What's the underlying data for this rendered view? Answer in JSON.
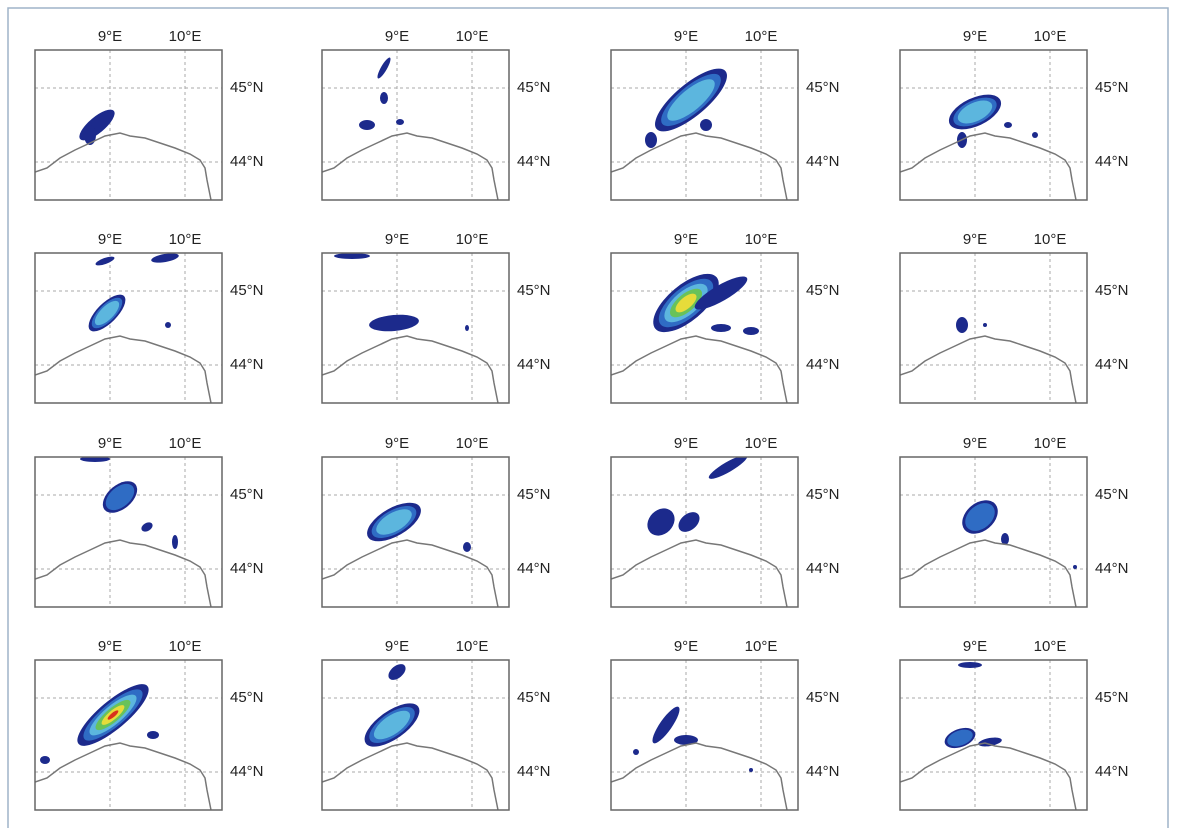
{
  "axes": {
    "lon_labels": [
      "9°E",
      "10°E"
    ],
    "lat_labels": [
      "45°N",
      "44°N"
    ]
  }
}
